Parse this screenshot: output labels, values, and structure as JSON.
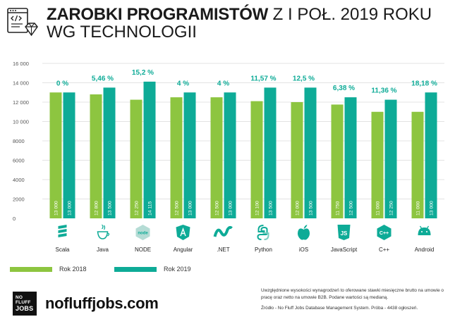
{
  "title": {
    "bold": "ZAROBKI PROGRAMISTÓW",
    "rest": " Z I POŁ. 2019 ROKU",
    "line2": "WG TECHNOLOGII"
  },
  "colors": {
    "series_2018": "#8dc540",
    "series_2019": "#0eab97",
    "percent": "#0eab97",
    "grid": "#e3e3e3",
    "axis_text": "#555555"
  },
  "legend": {
    "items": [
      "Rok 2018",
      "Rok 2019"
    ]
  },
  "chart_data": {
    "type": "bar",
    "categories": [
      "Scala",
      "Java",
      "NODE",
      "Angular",
      ".NET",
      "Python",
      "iOS",
      "JavaScript",
      "C++",
      "Android"
    ],
    "series": [
      {
        "name": "Rok 2018",
        "values": [
          13000,
          12800,
          12250,
          12500,
          12500,
          12100,
          12000,
          11750,
          11000,
          11000
        ],
        "labels": [
          "13 000",
          "12 800",
          "12 250",
          "12 500",
          "12 500",
          "12 100",
          "12 000",
          "11 750",
          "11 000",
          "11 000"
        ]
      },
      {
        "name": "Rok 2019",
        "values": [
          13000,
          13500,
          14115,
          13000,
          13000,
          13500,
          13500,
          12500,
          12250,
          13000
        ],
        "labels": [
          "13 000",
          "13 500",
          "14 115",
          "13 000",
          "13 000",
          "13 500",
          "13 500",
          "12 500",
          "12 250",
          "13 000"
        ]
      }
    ],
    "percent_labels": [
      "0 %",
      "5,46 %",
      "15,2 %",
      "4 %",
      "4 %",
      "11,57 %",
      "12,5 %",
      "6,38 %",
      "11,36 %",
      "18,18 %"
    ],
    "yticks": [
      0,
      2000,
      4000,
      6000,
      8000,
      10000,
      12000,
      14000,
      16000
    ],
    "ytick_labels": [
      "0",
      "2000",
      "4000",
      "6000",
      "8000",
      "10 000",
      "12 000",
      "14 000",
      "16 000"
    ],
    "ylim": [
      0,
      16000
    ],
    "grid": true,
    "icons": [
      "scala-icon",
      "java-icon",
      "nodejs-icon",
      "angular-icon",
      "dotnet-icon",
      "python-icon",
      "apple-icon",
      "javascript-icon",
      "cpp-icon",
      "android-icon"
    ]
  },
  "footer": {
    "logo_text": [
      "NO FLUFF",
      "JOBS"
    ],
    "brand": "nofluffjobs.com",
    "note1": "Uwzględnione wysokości wynagrodzeń to oferowane stawki miesięczne brutto na umowie o pracę oraz netto na umowie B2B. Podane wartości są medianą.",
    "note2": "Źródło - No Fluff Jobs Database Management System. Próba - 4438 ogłoszeń."
  }
}
